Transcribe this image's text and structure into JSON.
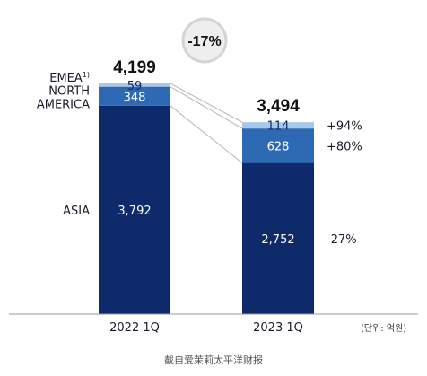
{
  "chart_data": {
    "type": "bar",
    "stacked": true,
    "categories": [
      "2022 1Q",
      "2023 1Q"
    ],
    "series": [
      {
        "name": "ASIA",
        "values": [
          3792,
          2752
        ],
        "change": "-27%",
        "color": "#0f2a6b"
      },
      {
        "name": "NORTH\nAMERICA",
        "values": [
          348,
          628
        ],
        "change": "+80%",
        "color": "#2e6ab3"
      },
      {
        "name": "EMEA",
        "superscript": "1)",
        "values": [
          59,
          114
        ],
        "change": "+94%",
        "color": "#a9c9ec"
      }
    ],
    "totals": [
      "4,199",
      "3,494"
    ],
    "total_change": "-17%",
    "unit_note": "(단위: 억원)",
    "grid": false
  },
  "caption": "截自爱茉莉太平洋财报"
}
